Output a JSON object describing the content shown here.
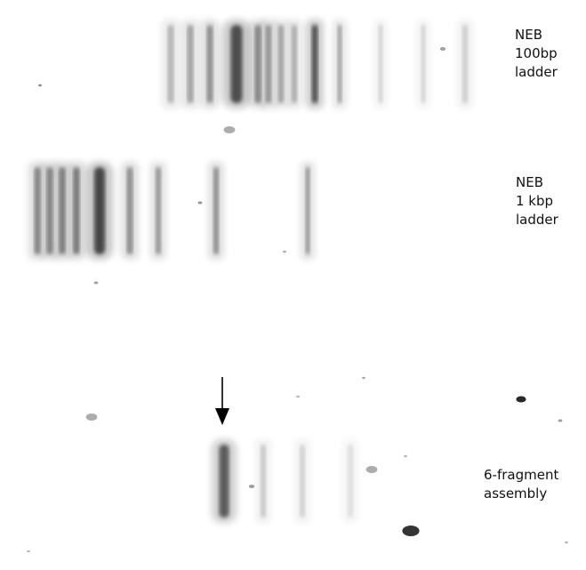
{
  "image": {
    "kind": "agarose gel electrophoresis photograph (inverted grayscale)",
    "background_color": "#ffffff",
    "band_color": "#1a1a1a"
  },
  "lanes": [
    {
      "id": "ladder-100bp",
      "label_lines": [
        "NEB",
        "100bp",
        "ladder"
      ],
      "band_intensities": [
        0.35,
        0.45,
        0.55,
        0.95,
        0.6,
        0.5,
        0.45,
        0.4,
        0.95,
        0.45,
        0.2,
        0.2,
        0.22
      ]
    },
    {
      "id": "ladder-1kbp",
      "label_lines": [
        "NEB",
        "1 kbp",
        "ladder"
      ],
      "band_intensities": [
        0.6,
        0.6,
        0.65,
        0.7,
        1.0,
        0.55,
        0.5,
        0.55,
        0.5
      ]
    },
    {
      "id": "six-fragment-assembly",
      "label_lines": [
        "6-fragment",
        "assembly"
      ],
      "band_intensities": [
        0.85,
        0.25,
        0.2,
        0.15
      ]
    }
  ],
  "marker": {
    "kind": "arrow",
    "points_to": "six-fragment-assembly target band",
    "icon": "down-arrow-icon"
  }
}
